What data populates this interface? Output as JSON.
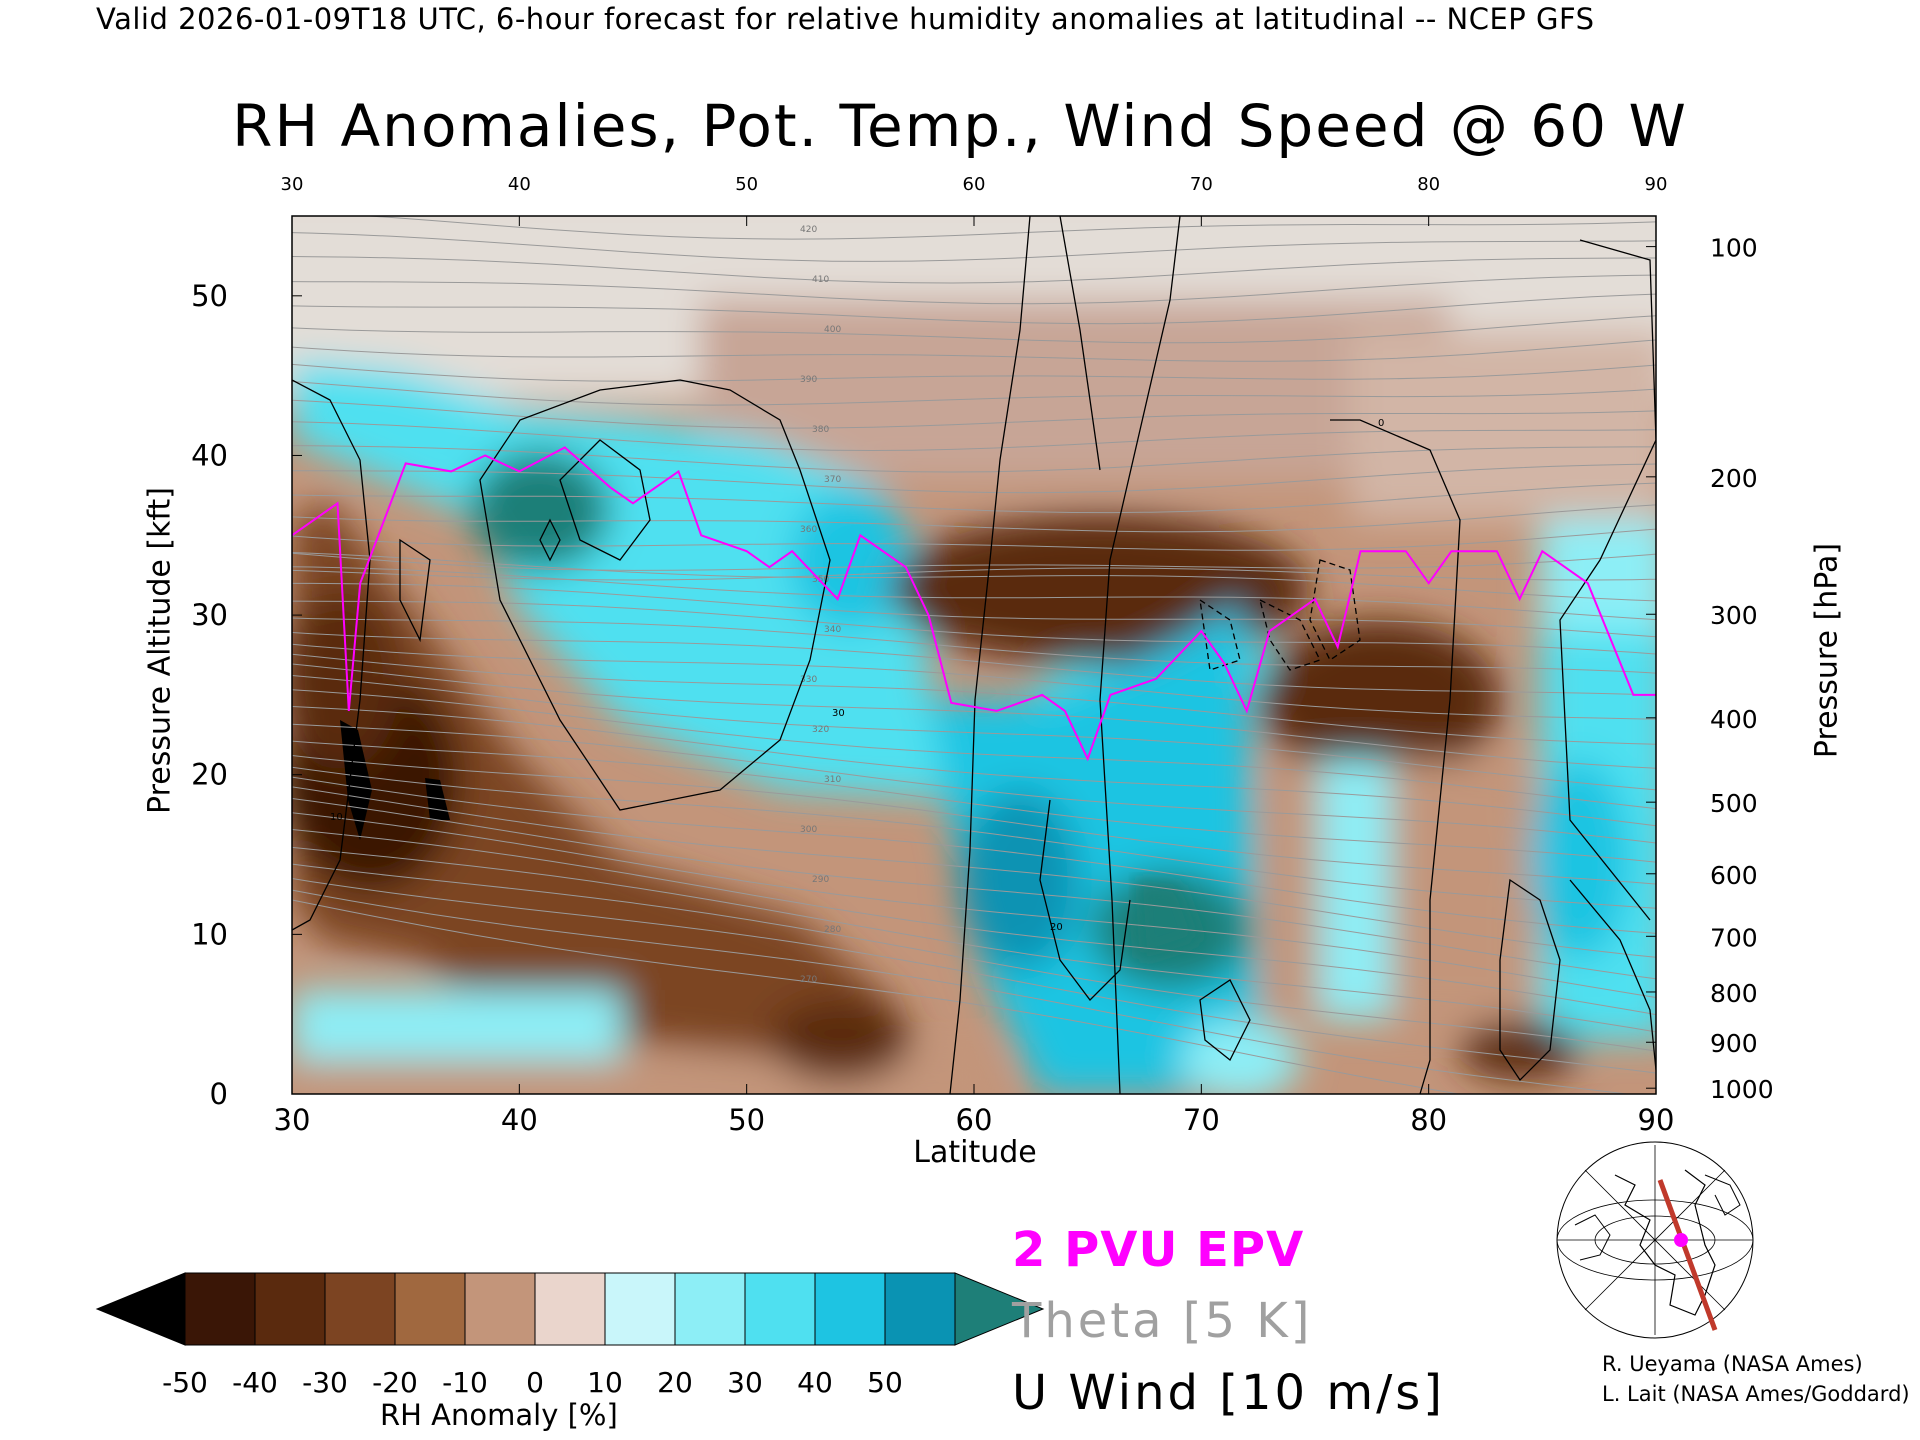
{
  "header": "Valid 2026-01-09T18 UTC, 6-hour forecast for relative humidity anomalies at latitudinal -- NCEP GFS",
  "chart_data": {
    "type": "heatmap",
    "title": "RH Anomalies, Pot. Temp., Wind Speed @ 60 W",
    "xlabel": "Latitude",
    "ylabel": "Pressure Altitude [kft]",
    "y2label": "Pressure [hPa]",
    "xlim": [
      30,
      90
    ],
    "ylim": [
      0,
      55
    ],
    "x_ticks": [
      "30",
      "40",
      "50",
      "60",
      "70",
      "80",
      "90"
    ],
    "top_ticks": [
      "30",
      "40",
      "50",
      "60",
      "70",
      "80",
      "90"
    ],
    "y_ticks": [
      "0",
      "10",
      "20",
      "30",
      "40",
      "50"
    ],
    "pressure_ticks": [
      {
        "label": "100",
        "hpa": 100
      },
      {
        "label": "200",
        "hpa": 200
      },
      {
        "label": "300",
        "hpa": 300
      },
      {
        "label": "400",
        "hpa": 400
      },
      {
        "label": "500",
        "hpa": 500
      },
      {
        "label": "600",
        "hpa": 600
      },
      {
        "label": "700",
        "hpa": 700
      },
      {
        "label": "800",
        "hpa": 800
      },
      {
        "label": "900",
        "hpa": 900
      },
      {
        "label": "1000",
        "hpa": 1000
      }
    ],
    "colorbar": {
      "label": "RH Anomaly [%]",
      "ticks": [
        "-50",
        "-40",
        "-30",
        "-20",
        "-10",
        "0",
        "10",
        "20",
        "30",
        "40",
        "50"
      ],
      "colors": [
        "#3a1606",
        "#5a2a0e",
        "#7c4422",
        "#a0683f",
        "#c3957a",
        "#ead5cc",
        "#c9f6fa",
        "#8deef6",
        "#4fe0f0",
        "#1ec4e2",
        "#0a93b3"
      ],
      "under_color": "#000000",
      "over_color": "#1e7f78"
    },
    "legend": [
      {
        "label": "2 PVU EPV",
        "color": "#ff00ff"
      },
      {
        "label": "Theta [5 K]",
        "color": "#a0a0a0"
      },
      {
        "label": "U Wind [10 m/s]",
        "color": "#000000"
      }
    ],
    "epv_2pvu_kft": [
      [
        30,
        35
      ],
      [
        32,
        37
      ],
      [
        32.5,
        24
      ],
      [
        33,
        32
      ],
      [
        35,
        39.5
      ],
      [
        37,
        39
      ],
      [
        38.5,
        40
      ],
      [
        40,
        39
      ],
      [
        42,
        40.5
      ],
      [
        44,
        38
      ],
      [
        45,
        37
      ],
      [
        47,
        39
      ],
      [
        48,
        35
      ],
      [
        50,
        34
      ],
      [
        51,
        33
      ],
      [
        52,
        34
      ],
      [
        54,
        31
      ],
      [
        55,
        35
      ],
      [
        57,
        33
      ],
      [
        58,
        30
      ],
      [
        59,
        24.5
      ],
      [
        61,
        24
      ],
      [
        63,
        25
      ],
      [
        64,
        24
      ],
      [
        65,
        21
      ],
      [
        66,
        25
      ],
      [
        68,
        26
      ],
      [
        70,
        29
      ],
      [
        71,
        27
      ],
      [
        72,
        24
      ],
      [
        73,
        29
      ],
      [
        75,
        31
      ],
      [
        76,
        28
      ],
      [
        77,
        34
      ],
      [
        79,
        34
      ],
      [
        80,
        32
      ],
      [
        81,
        34
      ],
      [
        83,
        34
      ],
      [
        84,
        31
      ],
      [
        85,
        34
      ],
      [
        86,
        33
      ],
      [
        87,
        32
      ],
      [
        89,
        25
      ],
      [
        90,
        25
      ]
    ],
    "theta_labels": [
      "420",
      "410",
      "400",
      "390",
      "380",
      "370",
      "360",
      "350",
      "340",
      "330",
      "320",
      "310",
      "300",
      "290",
      "280",
      "270"
    ],
    "wind_contour_labels": [
      "0",
      "10",
      "20",
      "30"
    ]
  },
  "inset_map": {
    "name": "cross-section-location-map"
  },
  "credits": [
    "R. Ueyama (NASA Ames)",
    "L. Lait (NASA Ames/Goddard)"
  ]
}
